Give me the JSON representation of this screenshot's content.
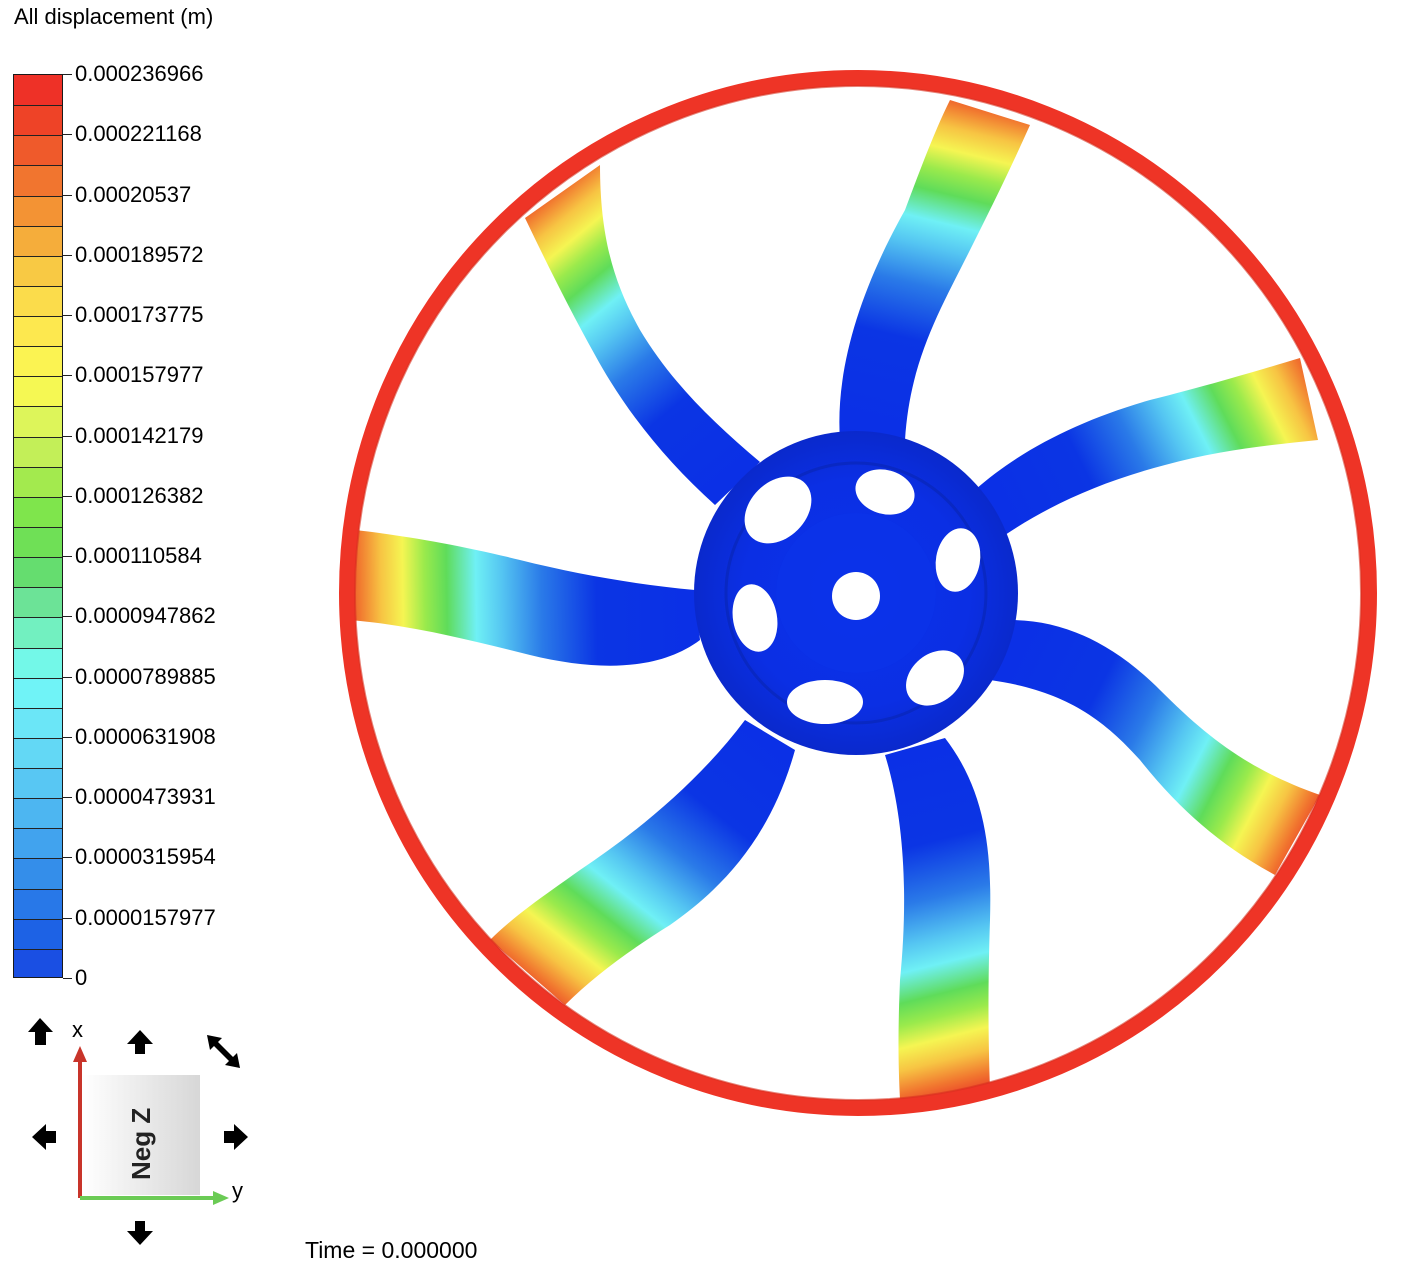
{
  "legend": {
    "title": "All displacement (m)",
    "ticks": [
      "0.000236966",
      "0.000221168",
      "0.00020537",
      "0.000189572",
      "0.000173775",
      "0.000157977",
      "0.000142179",
      "0.000126382",
      "0.000110584",
      "0.0000947862",
      "0.0000789885",
      "0.0000631908",
      "0.0000473931",
      "0.0000315954",
      "0.0000157977",
      "0"
    ],
    "band_colors": [
      "#ee3127",
      "#ee4327",
      "#ef5a2b",
      "#f1752f",
      "#f39334",
      "#f5ad3b",
      "#f8c944",
      "#fbdc4b",
      "#fde84f",
      "#fbf352",
      "#f5f853",
      "#ddf55a",
      "#c3ef58",
      "#a3ea4e",
      "#7fe54c",
      "#6fe056",
      "#65dd6f",
      "#6ce397",
      "#72f0c0",
      "#73f8e8",
      "#70f3f7",
      "#6be6f7",
      "#63d8f5",
      "#58c7f3",
      "#4db6f1",
      "#41a3ee",
      "#348eea",
      "#2878e8",
      "#1d62e5",
      "#1a4fe3"
    ]
  },
  "viewport": {
    "view_label": "Neg Z",
    "axis_x": "x",
    "axis_y": "y"
  },
  "status": {
    "time": "Time = 0.000000"
  },
  "colors": {
    "rim": "#ee3426",
    "hub": "#0b2fe6",
    "hub_dark": "#0a28c8",
    "axis_x": "#c8342a",
    "axis_y": "#6bcb55"
  }
}
